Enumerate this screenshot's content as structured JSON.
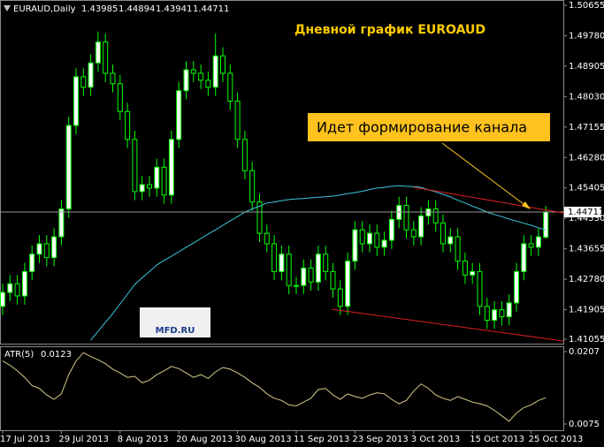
{
  "chart_data": [
    {
      "type": "candlestick",
      "symbol": "EURAUD,Daily",
      "title": "Дневной график EUROAUD",
      "annotation": "Идет формирование канала",
      "watermark": "MFD.RU",
      "categories": [
        "17 Jul 2013",
        null,
        null,
        null,
        null,
        null,
        null,
        null,
        "29 Jul 2013",
        null,
        null,
        null,
        null,
        null,
        null,
        null,
        "8 Aug 2013",
        null,
        null,
        null,
        null,
        null,
        null,
        null,
        "20 Aug 2013",
        null,
        null,
        null,
        null,
        null,
        null,
        null,
        "30 Aug 2013",
        null,
        null,
        null,
        null,
        null,
        null,
        null,
        "11 Sep 2013",
        null,
        null,
        null,
        null,
        null,
        null,
        null,
        "23 Sep 2013",
        null,
        null,
        null,
        null,
        null,
        null,
        null,
        "3 Oct 2013",
        null,
        null,
        null,
        null,
        null,
        null,
        null,
        "15 Oct 2013",
        null,
        null,
        null,
        null,
        null,
        null,
        null,
        "25 Oct 2013",
        null,
        null
      ],
      "open": [
        1.42,
        1.424,
        1.4265,
        1.423,
        1.43,
        1.435,
        1.438,
        1.434,
        1.44,
        1.448,
        1.472,
        1.486,
        1.483,
        1.49,
        1.496,
        1.487,
        1.484,
        1.476,
        1.468,
        1.453,
        1.455,
        1.454,
        1.46,
        1.452,
        1.468,
        1.482,
        1.488,
        1.487,
        1.485,
        1.483,
        1.492,
        1.487,
        1.479,
        1.468,
        1.459,
        1.45,
        1.441,
        1.438,
        1.43,
        1.435,
        1.426,
        1.426,
        1.431,
        1.427,
        1.435,
        1.43,
        1.425,
        1.42,
        1.433,
        1.442,
        1.438,
        1.441,
        1.437,
        1.439,
        1.445,
        1.449,
        1.442,
        1.44,
        1.446,
        1.448,
        1.444,
        1.438,
        1.44,
        1.433,
        1.429,
        1.43,
        1.42,
        1.416,
        1.419,
        1.417,
        1.421,
        1.43,
        1.438,
        1.437,
        1.43985
      ],
      "high": [
        1.4265,
        1.429,
        1.429,
        1.4325,
        1.4375,
        1.4405,
        1.4405,
        1.4425,
        1.4505,
        1.4745,
        1.4885,
        1.4885,
        1.4925,
        1.499,
        1.4985,
        1.4895,
        1.4865,
        1.4785,
        1.4705,
        1.4575,
        1.4575,
        1.4625,
        1.4625,
        1.4705,
        1.4845,
        1.4905,
        1.4905,
        1.4895,
        1.4875,
        1.4985,
        1.4945,
        1.4895,
        1.4815,
        1.4705,
        1.4615,
        1.4525,
        1.4435,
        1.4405,
        1.4375,
        1.4375,
        1.4285,
        1.4335,
        1.4335,
        1.4375,
        1.4375,
        1.4325,
        1.4275,
        1.4355,
        1.4445,
        1.4445,
        1.4435,
        1.4435,
        1.4415,
        1.4475,
        1.4515,
        1.4515,
        1.4445,
        1.4485,
        1.4505,
        1.4505,
        1.4465,
        1.4425,
        1.4425,
        1.4355,
        1.4325,
        1.4325,
        1.4225,
        1.4215,
        1.4215,
        1.4235,
        1.4325,
        1.4405,
        1.4405,
        1.4425,
        1.44894
      ],
      "low": [
        1.4175,
        1.4215,
        1.4205,
        1.4205,
        1.4275,
        1.4325,
        1.4315,
        1.4315,
        1.4375,
        1.4455,
        1.4695,
        1.4805,
        1.4805,
        1.4875,
        1.4845,
        1.4815,
        1.4735,
        1.4655,
        1.4505,
        1.4505,
        1.4515,
        1.4515,
        1.4495,
        1.4495,
        1.4655,
        1.4795,
        1.4845,
        1.4825,
        1.4805,
        1.4805,
        1.4845,
        1.4765,
        1.4655,
        1.4565,
        1.4475,
        1.4385,
        1.4355,
        1.4275,
        1.4275,
        1.4235,
        1.4235,
        1.4235,
        1.4245,
        1.4245,
        1.4275,
        1.4225,
        1.4175,
        1.4175,
        1.4305,
        1.4355,
        1.4355,
        1.4345,
        1.4345,
        1.4365,
        1.4425,
        1.4395,
        1.4375,
        1.4375,
        1.4435,
        1.4415,
        1.4355,
        1.4355,
        1.4305,
        1.4265,
        1.4265,
        1.4175,
        1.4135,
        1.4135,
        1.4145,
        1.4145,
        1.4185,
        1.4275,
        1.4345,
        1.4345,
        1.43941
      ],
      "close": [
        1.424,
        1.4265,
        1.423,
        1.43,
        1.435,
        1.438,
        1.434,
        1.44,
        1.448,
        1.472,
        1.486,
        1.483,
        1.49,
        1.496,
        1.487,
        1.484,
        1.476,
        1.468,
        1.453,
        1.455,
        1.454,
        1.46,
        1.452,
        1.468,
        1.482,
        1.488,
        1.487,
        1.485,
        1.483,
        1.492,
        1.487,
        1.479,
        1.468,
        1.459,
        1.45,
        1.441,
        1.438,
        1.43,
        1.435,
        1.426,
        1.426,
        1.431,
        1.427,
        1.435,
        1.43,
        1.425,
        1.42,
        1.433,
        1.442,
        1.438,
        1.441,
        1.437,
        1.439,
        1.445,
        1.449,
        1.442,
        1.44,
        1.446,
        1.448,
        1.444,
        1.438,
        1.44,
        1.433,
        1.429,
        1.43,
        1.42,
        1.416,
        1.419,
        1.417,
        1.421,
        1.43,
        1.438,
        1.437,
        1.44,
        1.44711
      ],
      "ma": {
        "color": "#3cc8dc",
        "values": [
          null,
          null,
          null,
          null,
          null,
          null,
          null,
          null,
          null,
          null,
          null,
          null,
          1.4103,
          1.4128,
          1.4154,
          1.4179,
          1.4207,
          1.4235,
          1.4263,
          1.4282,
          1.43,
          1.4319,
          1.4332,
          1.4344,
          1.4357,
          1.437,
          1.4382,
          1.4395,
          1.4408,
          1.442,
          1.4433,
          1.4446,
          1.4458,
          1.4471,
          1.448,
          1.4488,
          1.4497,
          1.45,
          1.4504,
          1.4507,
          1.4509,
          1.451,
          1.4512,
          1.4514,
          1.4515,
          1.4517,
          1.452,
          1.4524,
          1.4527,
          1.4531,
          1.4536,
          1.454,
          1.4542,
          1.4545,
          1.4547,
          1.4545,
          1.4544,
          1.4542,
          1.4535,
          1.4529,
          1.4522,
          1.4515,
          1.4505,
          1.4497,
          1.4488,
          1.448,
          1.4471,
          1.4464,
          1.4458,
          1.4451,
          1.4445,
          1.4439,
          1.4433,
          1.4426,
          1.442
        ]
      },
      "up_color": "#ffffff",
      "down_color": "#000000",
      "wick_color": "#00ff00",
      "ylim": [
        1.41055,
        1.50655
      ],
      "yticks": [
        1.50655,
        {
          "value": 1.4978,
          "label": "1.49780"
        },
        1.48905,
        {
          "value": 1.4803,
          "label": "1.48030"
        },
        1.47155,
        {
          "value": 1.4628,
          "label": "1.46280"
        },
        1.45405,
        {
          "value": 1.4453,
          "label": "1.44530"
        },
        1.43655,
        {
          "value": 1.4278,
          "label": "1.42780"
        },
        1.41905,
        1.41055
      ]
    },
    {
      "type": "line",
      "label": "ATR(5)",
      "color": "#d6c98c",
      "values": [
        0.019,
        0.0182,
        0.0172,
        0.016,
        0.0145,
        0.014,
        0.0128,
        0.012,
        0.013,
        0.0165,
        0.019,
        0.0205,
        0.0198,
        0.0192,
        0.0185,
        0.0175,
        0.0168,
        0.016,
        0.0162,
        0.015,
        0.0155,
        0.0165,
        0.0172,
        0.018,
        0.0176,
        0.0168,
        0.016,
        0.0165,
        0.0158,
        0.017,
        0.0178,
        0.0175,
        0.0168,
        0.016,
        0.015,
        0.0142,
        0.013,
        0.0122,
        0.0118,
        0.011,
        0.0108,
        0.0115,
        0.0122,
        0.0138,
        0.014,
        0.0128,
        0.012,
        0.013,
        0.0125,
        0.0122,
        0.0128,
        0.0132,
        0.013,
        0.012,
        0.0112,
        0.0118,
        0.0135,
        0.0148,
        0.014,
        0.0128,
        0.0122,
        0.0118,
        0.0125,
        0.012,
        0.0115,
        0.0112,
        0.0108,
        0.01,
        0.009,
        0.008,
        0.0095,
        0.0105,
        0.011,
        0.0118,
        0.0123
      ],
      "ylim": [
        0.0075,
        0.0207
      ],
      "yticks": [
        0.0207,
        0.0075
      ]
    }
  ]
}
